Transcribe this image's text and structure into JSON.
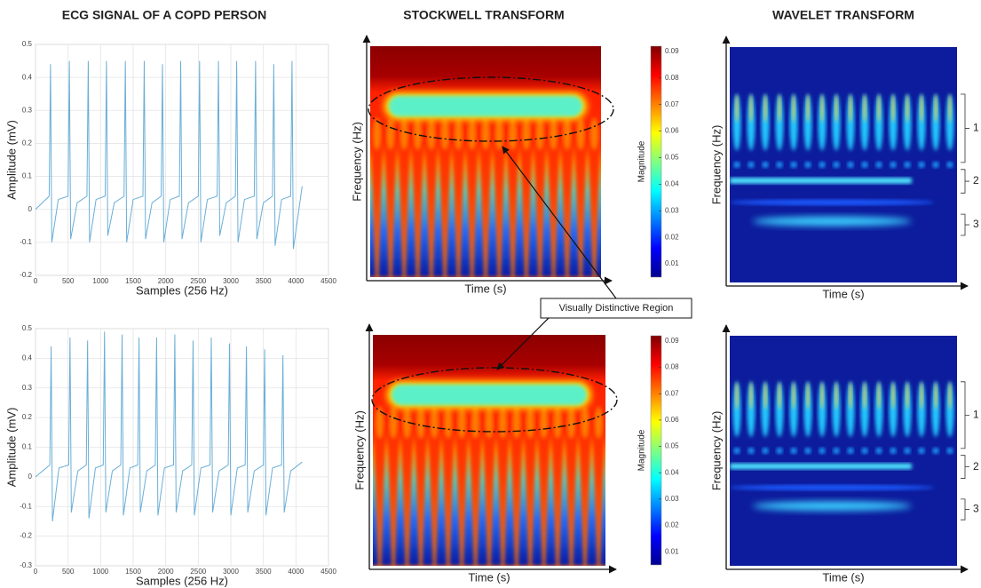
{
  "column_titles": [
    "ECG SIGNAL OF A COPD PERSON",
    "STOCKWELL TRANSFORM",
    "WAVELET TRANSFORM"
  ],
  "annotation": "Visually Distinctive Region",
  "chart_data": [
    {
      "type": "line",
      "x_label": "Samples (256 Hz)",
      "y_label": "Amplitude (mV)",
      "color": "#6aaed6",
      "grid": true,
      "xlim": [
        0,
        4500
      ],
      "xticks": [
        0,
        500,
        1000,
        1500,
        2000,
        2500,
        3000,
        3500,
        4000,
        4500
      ],
      "ylim": [
        -0.2,
        0.5
      ],
      "yticks": [
        -0.2,
        -0.1,
        0,
        0.1,
        0.2,
        0.3,
        0.4,
        0.5
      ],
      "x": [
        0,
        210,
        230,
        250,
        350,
        500,
        520,
        540,
        640,
        790,
        810,
        830,
        930,
        1070,
        1090,
        1110,
        1210,
        1360,
        1380,
        1400,
        1500,
        1650,
        1670,
        1690,
        1790,
        1930,
        1950,
        1970,
        2070,
        2210,
        2230,
        2250,
        2350,
        2500,
        2520,
        2540,
        2640,
        2790,
        2810,
        2830,
        2930,
        3070,
        3090,
        3110,
        3210,
        3360,
        3380,
        3400,
        3500,
        3640,
        3660,
        3680,
        3780,
        3920,
        3940,
        3960,
        4060,
        4096
      ],
      "values": [
        0,
        0.04,
        0.44,
        -0.1,
        0.03,
        0.04,
        0.45,
        -0.09,
        0.02,
        0.04,
        0.45,
        -0.1,
        0.03,
        0.04,
        0.45,
        -0.08,
        0.02,
        0.04,
        0.45,
        -0.1,
        0.03,
        0.04,
        0.45,
        -0.09,
        0.02,
        0.04,
        0.44,
        -0.1,
        0.03,
        0.04,
        0.45,
        -0.09,
        0.02,
        0.04,
        0.45,
        -0.1,
        0.03,
        0.04,
        0.45,
        -0.08,
        0.02,
        0.04,
        0.45,
        -0.1,
        0.03,
        0.04,
        0.45,
        -0.09,
        0.02,
        0.04,
        0.44,
        -0.11,
        0.03,
        0.04,
        0.45,
        -0.12,
        0.02,
        0.07
      ]
    },
    {
      "type": "heatmap",
      "x_label": "Time (s)",
      "y_label": "Frequency (Hz)",
      "colorbar_label": "Magnitude",
      "zlim": [
        0.005,
        0.092
      ],
      "zticks": [
        0.01,
        0.02,
        0.03,
        0.04,
        0.05,
        0.06,
        0.07,
        0.08,
        0.09
      ]
    },
    {
      "type": "heatmap",
      "x_label": "Time (s)",
      "y_label": "Frequency (Hz)",
      "regions": [
        "1",
        "2",
        "3"
      ]
    },
    {
      "type": "line",
      "x_label": "Samples (256 Hz)",
      "y_label": "Amplitude (mV)",
      "color": "#6aaed6",
      "grid": true,
      "xlim": [
        0,
        4500
      ],
      "xticks": [
        0,
        500,
        1000,
        1500,
        2000,
        2500,
        3000,
        3500,
        4000,
        4500
      ],
      "ylim": [
        -0.3,
        0.5
      ],
      "yticks": [
        -0.3,
        -0.2,
        -0.1,
        0,
        0.1,
        0.2,
        0.3,
        0.4,
        0.5
      ],
      "x": [
        0,
        220,
        240,
        260,
        360,
        510,
        530,
        550,
        650,
        780,
        800,
        820,
        920,
        1040,
        1060,
        1080,
        1180,
        1310,
        1330,
        1350,
        1450,
        1570,
        1590,
        1610,
        1710,
        1840,
        1860,
        1880,
        1980,
        2120,
        2140,
        2160,
        2260,
        2400,
        2420,
        2440,
        2540,
        2680,
        2700,
        2720,
        2820,
        2960,
        2980,
        3000,
        3100,
        3220,
        3240,
        3260,
        3360,
        3500,
        3520,
        3540,
        3640,
        3780,
        3800,
        3820,
        3920,
        4096
      ],
      "values": [
        0,
        0.04,
        0.44,
        -0.15,
        0.03,
        0.04,
        0.47,
        -0.12,
        0.02,
        0.04,
        0.46,
        -0.14,
        0.03,
        0.04,
        0.49,
        -0.12,
        0.02,
        0.04,
        0.48,
        -0.13,
        0.03,
        0.04,
        0.47,
        -0.12,
        0.02,
        0.04,
        0.47,
        -0.13,
        0.03,
        0.04,
        0.48,
        -0.12,
        0.02,
        0.04,
        0.46,
        -0.13,
        0.03,
        0.04,
        0.47,
        -0.12,
        0.02,
        0.04,
        0.45,
        -0.13,
        0.03,
        0.04,
        0.44,
        -0.12,
        0.02,
        0.04,
        0.43,
        -0.13,
        0.03,
        0.04,
        0.41,
        -0.12,
        0.02,
        0.05
      ]
    },
    {
      "type": "heatmap",
      "x_label": "Time (s)",
      "y_label": "Frequency (Hz)",
      "colorbar_label": "Magnitude",
      "zlim": [
        0.005,
        0.092
      ],
      "zticks": [
        0.01,
        0.02,
        0.03,
        0.04,
        0.05,
        0.06,
        0.07,
        0.08,
        0.09
      ]
    },
    {
      "type": "heatmap",
      "x_label": "Time (s)",
      "y_label": "Frequency (Hz)",
      "regions": [
        "1",
        "2",
        "3"
      ]
    }
  ]
}
